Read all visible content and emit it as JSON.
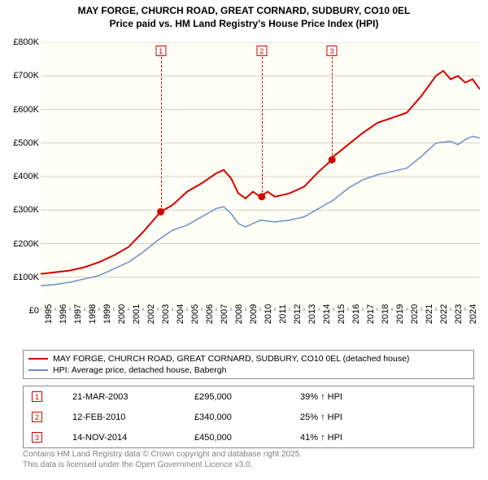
{
  "title_line1": "MAY FORGE, CHURCH ROAD, GREAT CORNARD, SUDBURY, CO10 0EL",
  "title_line2": "Price paid vs. HM Land Registry's House Price Index (HPI)",
  "chart": {
    "type": "line",
    "background": "#fffff5",
    "xlim": [
      1995,
      2025
    ],
    "ylim": [
      0,
      800000
    ],
    "ytick_step": 100000,
    "ytick_labels": [
      "£0",
      "£100K",
      "£200K",
      "£300K",
      "£400K",
      "£500K",
      "£600K",
      "£700K",
      "£800K"
    ],
    "xtick_labels": [
      "1995",
      "1996",
      "1997",
      "1998",
      "1999",
      "2000",
      "2001",
      "2002",
      "2003",
      "2004",
      "2005",
      "2006",
      "2007",
      "2008",
      "2009",
      "2010",
      "2011",
      "2012",
      "2013",
      "2014",
      "2015",
      "2016",
      "2017",
      "2018",
      "2019",
      "2020",
      "2021",
      "2022",
      "2023",
      "2024"
    ],
    "series": [
      {
        "name": "price_paid",
        "color": "#d40000",
        "width": 2,
        "points": [
          [
            1995,
            110000
          ],
          [
            1996,
            115000
          ],
          [
            1997,
            120000
          ],
          [
            1998,
            130000
          ],
          [
            1999,
            145000
          ],
          [
            2000,
            165000
          ],
          [
            2001,
            190000
          ],
          [
            2002,
            235000
          ],
          [
            2003,
            285000
          ],
          [
            2003.2,
            295000
          ],
          [
            2004,
            315000
          ],
          [
            2005,
            355000
          ],
          [
            2006,
            380000
          ],
          [
            2007,
            410000
          ],
          [
            2007.5,
            420000
          ],
          [
            2008,
            395000
          ],
          [
            2008.5,
            350000
          ],
          [
            2009,
            335000
          ],
          [
            2009.5,
            355000
          ],
          [
            2010,
            340000
          ],
          [
            2010.5,
            355000
          ],
          [
            2011,
            340000
          ],
          [
            2012,
            350000
          ],
          [
            2013,
            370000
          ],
          [
            2014,
            415000
          ],
          [
            2014.9,
            450000
          ],
          [
            2015,
            460000
          ],
          [
            2016,
            495000
          ],
          [
            2017,
            530000
          ],
          [
            2018,
            560000
          ],
          [
            2019,
            575000
          ],
          [
            2020,
            590000
          ],
          [
            2021,
            640000
          ],
          [
            2022,
            700000
          ],
          [
            2022.5,
            715000
          ],
          [
            2023,
            690000
          ],
          [
            2023.5,
            700000
          ],
          [
            2024,
            680000
          ],
          [
            2024.5,
            690000
          ],
          [
            2025,
            660000
          ]
        ],
        "sale_markers": [
          {
            "x": 2003.2,
            "y": 295000
          },
          {
            "x": 2010.1,
            "y": 340000
          },
          {
            "x": 2014.9,
            "y": 450000
          }
        ]
      },
      {
        "name": "hpi",
        "color": "#6b8fc9",
        "width": 1.5,
        "points": [
          [
            1995,
            75000
          ],
          [
            1996,
            78000
          ],
          [
            1997,
            85000
          ],
          [
            1998,
            95000
          ],
          [
            1999,
            105000
          ],
          [
            2000,
            125000
          ],
          [
            2001,
            145000
          ],
          [
            2002,
            175000
          ],
          [
            2003,
            210000
          ],
          [
            2004,
            240000
          ],
          [
            2005,
            255000
          ],
          [
            2006,
            280000
          ],
          [
            2007,
            305000
          ],
          [
            2007.5,
            310000
          ],
          [
            2008,
            290000
          ],
          [
            2008.5,
            260000
          ],
          [
            2009,
            250000
          ],
          [
            2010,
            270000
          ],
          [
            2011,
            265000
          ],
          [
            2012,
            270000
          ],
          [
            2013,
            280000
          ],
          [
            2014,
            305000
          ],
          [
            2015,
            330000
          ],
          [
            2016,
            365000
          ],
          [
            2017,
            390000
          ],
          [
            2018,
            405000
          ],
          [
            2019,
            415000
          ],
          [
            2020,
            425000
          ],
          [
            2021,
            460000
          ],
          [
            2022,
            500000
          ],
          [
            2023,
            505000
          ],
          [
            2023.5,
            495000
          ],
          [
            2024,
            510000
          ],
          [
            2024.5,
            520000
          ],
          [
            2025,
            515000
          ]
        ]
      }
    ],
    "event_markers": [
      {
        "n": "1",
        "x": 2003.2
      },
      {
        "n": "2",
        "x": 2010.1
      },
      {
        "n": "3",
        "x": 2014.9
      }
    ]
  },
  "legend": {
    "items": [
      {
        "color": "#d40000",
        "label": "MAY FORGE, CHURCH ROAD, GREAT CORNARD, SUDBURY, CO10 0EL (detached house)"
      },
      {
        "color": "#6b8fc9",
        "label": "HPI: Average price, detached house, Babergh"
      }
    ]
  },
  "events": [
    {
      "n": "1",
      "date": "21-MAR-2003",
      "price": "£295,000",
      "delta": "39% ↑ HPI"
    },
    {
      "n": "2",
      "date": "12-FEB-2010",
      "price": "£340,000",
      "delta": "25% ↑ HPI"
    },
    {
      "n": "3",
      "date": "14-NOV-2014",
      "price": "£450,000",
      "delta": "41% ↑ HPI"
    }
  ],
  "footer_line1": "Contains HM Land Registry data © Crown copyright and database right 2025.",
  "footer_line2": "This data is licensed under the Open Government Licence v3.0."
}
